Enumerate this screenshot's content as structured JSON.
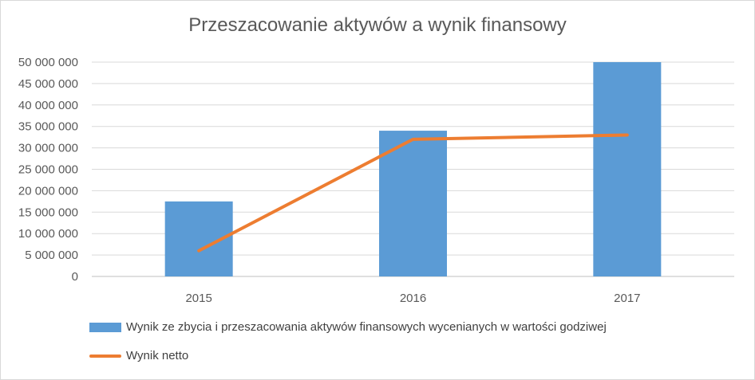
{
  "chart_data": {
    "type": "bar",
    "title": "Przeszacowanie aktywów a wynik finansowy",
    "categories": [
      "2015",
      "2016",
      "2017"
    ],
    "ylim": [
      0,
      50000000
    ],
    "yticks": [
      0,
      5000000,
      10000000,
      15000000,
      20000000,
      25000000,
      30000000,
      35000000,
      40000000,
      45000000,
      50000000
    ],
    "ytick_labels": [
      "0",
      "5 000 000",
      "10 000 000",
      "15 000 000",
      "20 000 000",
      "25 000 000",
      "30 000 000",
      "35 000 000",
      "40 000 000",
      "45 000 000",
      "50 000 000"
    ],
    "grid": true,
    "legend_position": "bottom",
    "series": [
      {
        "name": "Wynik ze zbycia i przeszacowania aktywów finansowych wycenianych w wartości godziwej",
        "type": "bar",
        "color": "#5b9bd5",
        "values": [
          17500000,
          34000000,
          50000000
        ]
      },
      {
        "name": "Wynik netto",
        "type": "line",
        "color": "#ed7d31",
        "values": [
          6000000,
          32000000,
          33000000
        ]
      }
    ]
  }
}
